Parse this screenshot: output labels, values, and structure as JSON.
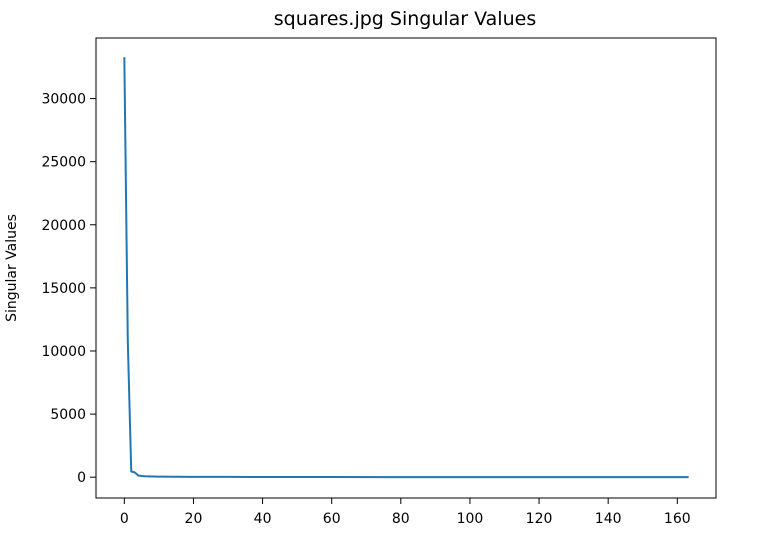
{
  "chart_data": {
    "type": "line",
    "title": "squares.jpg Singular Values",
    "xlabel": "",
    "ylabel": "Singular Values",
    "xlim": [
      -8.2,
      171.2
    ],
    "ylim": [
      -1650,
      34800
    ],
    "xticks": [
      0,
      20,
      40,
      60,
      80,
      100,
      120,
      140,
      160
    ],
    "yticks": [
      0,
      5000,
      10000,
      15000,
      20000,
      25000,
      30000
    ],
    "grid": false,
    "legend": "none",
    "series": [
      {
        "color": "#1f77b4",
        "x": [
          0,
          1,
          2,
          3,
          4,
          5,
          6,
          8,
          10,
          15,
          20,
          30,
          40,
          60,
          80,
          100,
          120,
          140,
          163
        ],
        "y": [
          33200,
          10800,
          450,
          380,
          130,
          90,
          70,
          55,
          45,
          35,
          28,
          20,
          15,
          10,
          8,
          6,
          5,
          4,
          3
        ]
      }
    ]
  }
}
